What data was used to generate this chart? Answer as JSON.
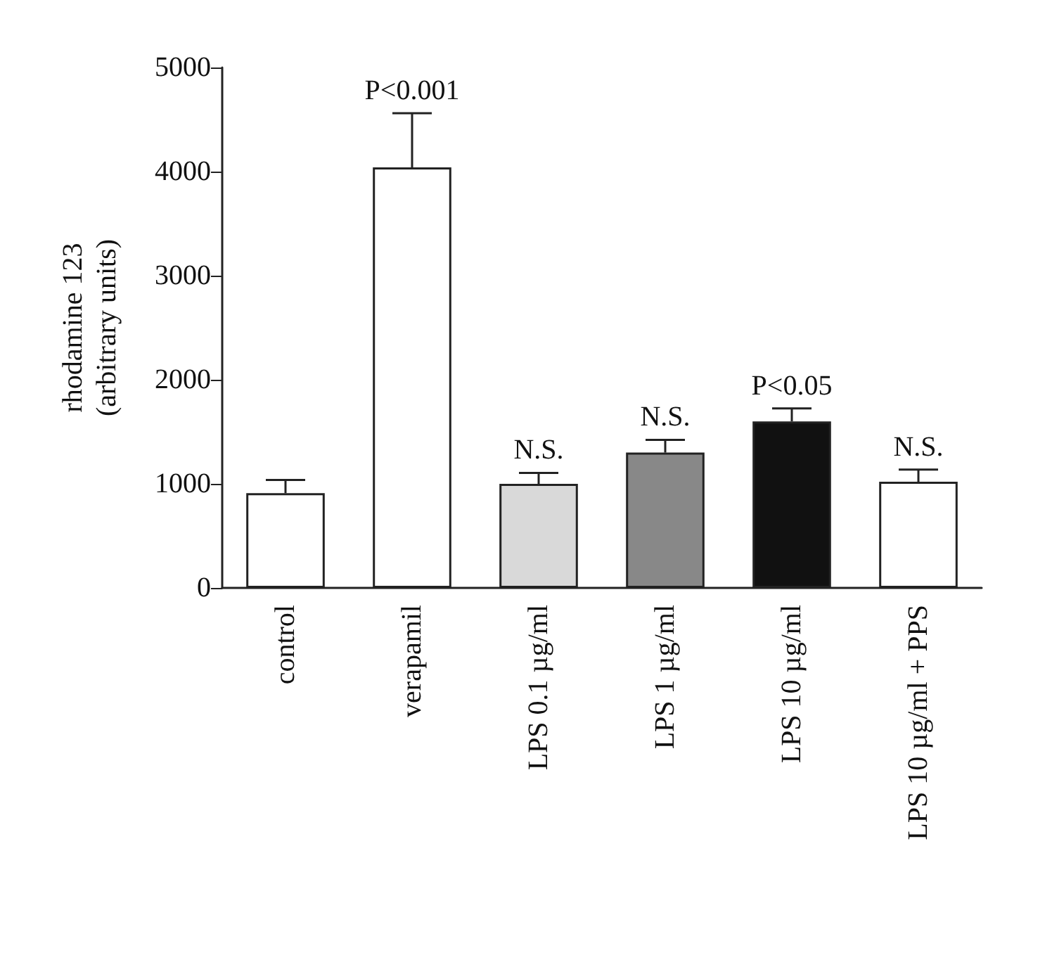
{
  "chart_data": {
    "type": "bar",
    "ylabel": "rhodamine 123\n(arbitrary units)",
    "categories": [
      "control",
      "verapamil",
      "LPS 0.1 µg/ml",
      "LPS 1 µg/ml",
      "LPS 10 µg/ml",
      "LPS 10 µg/ml + PPS"
    ],
    "values": [
      910,
      4040,
      1000,
      1300,
      1600,
      1020
    ],
    "colors": [
      "#ffffff",
      "#ffffff",
      "#d9d9d9",
      "#888888",
      "#111111",
      "#ffffff"
    ],
    "errors": [
      127,
      520,
      105,
      123,
      125,
      117
    ],
    "ylim": [
      0,
      5000
    ],
    "yticks": [
      0,
      1000,
      2000,
      3000,
      4000,
      5000
    ],
    "annotations": [
      {
        "text": "P<0.001",
        "x": "verapamil",
        "y": 4560
      },
      {
        "text": "N.S.",
        "x": "LPS 0.1 µg/ml",
        "y": 1105
      },
      {
        "text": "N.S.",
        "x": "LPS 1 µg/ml",
        "y": 1423
      },
      {
        "text": "P<0.05",
        "x": "LPS 10 µg/ml",
        "y": 1725
      },
      {
        "text": "N.S.",
        "x": "LPS 10 µg/ml + PPS",
        "y": 1137
      }
    ],
    "grid": false
  }
}
